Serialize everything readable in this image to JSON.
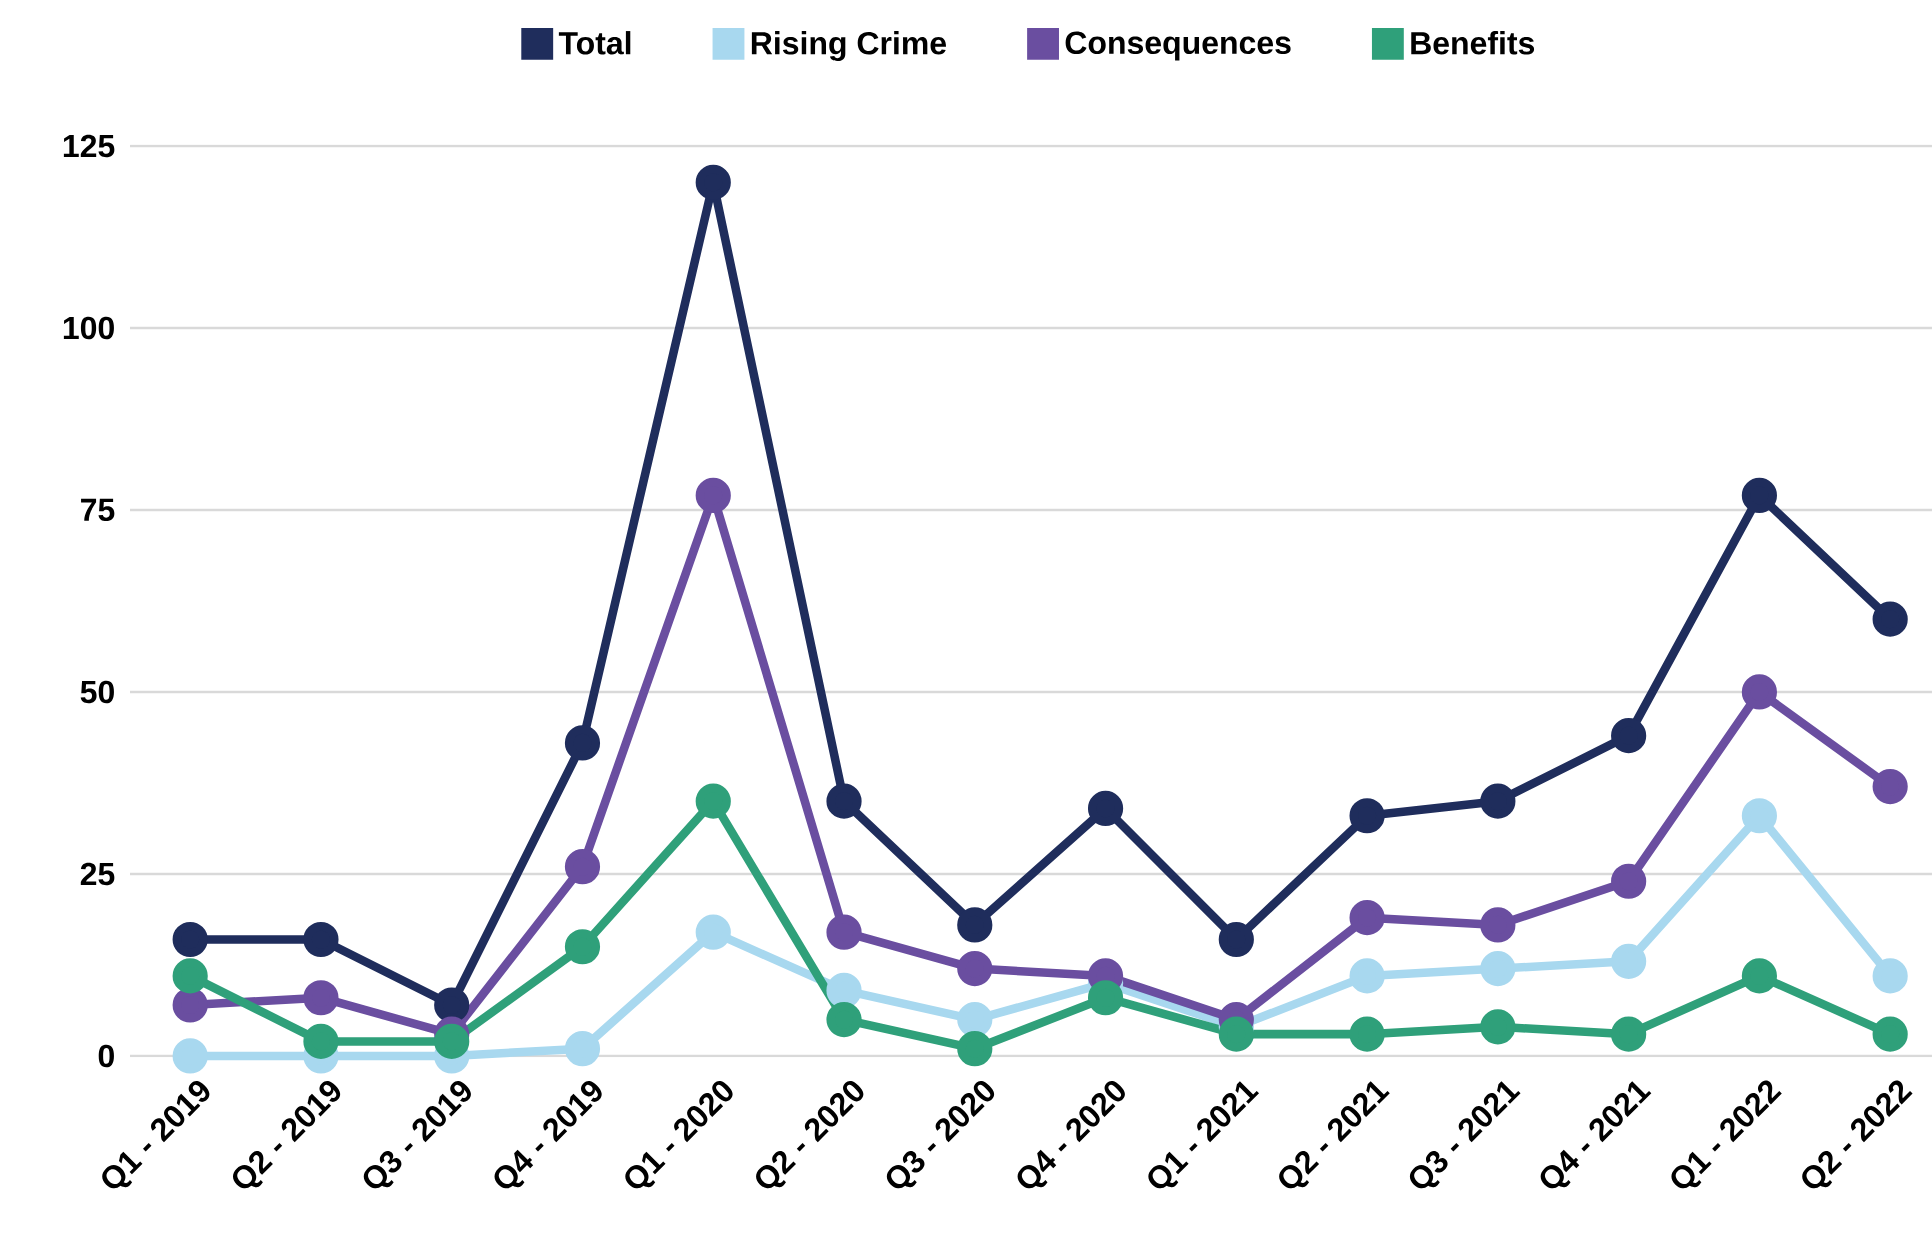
{
  "chart_data": {
    "type": "line",
    "categories": [
      "Q1 - 2019",
      "Q2 - 2019",
      "Q3 - 2019",
      "Q4 - 2019",
      "Q1 - 2020",
      "Q2 - 2020",
      "Q3 - 2020",
      "Q4 - 2020",
      "Q1 - 2021",
      "Q2 - 2021",
      "Q3 - 2021",
      "Q4 - 2021",
      "Q1 - 2022",
      "Q2 - 2022"
    ],
    "series": [
      {
        "name": "Total",
        "color": "#1f2d5c",
        "values": [
          16,
          16,
          7,
          43,
          120,
          35,
          18,
          34,
          16,
          33,
          35,
          44,
          77,
          60
        ]
      },
      {
        "name": "Rising Crime",
        "color": "#a8d8ef",
        "values": [
          0,
          0,
          0,
          1,
          17,
          9,
          5,
          10,
          4,
          11,
          12,
          13,
          33,
          11
        ]
      },
      {
        "name": "Consequences",
        "color": "#6a4ea0",
        "values": [
          7,
          8,
          3,
          26,
          77,
          17,
          12,
          11,
          5,
          19,
          18,
          24,
          50,
          37
        ]
      },
      {
        "name": "Benefits",
        "color": "#2fa07a",
        "values": [
          11,
          2,
          2,
          15,
          35,
          5,
          1,
          8,
          3,
          3,
          4,
          3,
          11,
          3
        ]
      }
    ],
    "ylim": [
      0,
      125
    ],
    "yticks": [
      0,
      25,
      50,
      75,
      100,
      125
    ],
    "grid": "y",
    "legend": "top",
    "marker": "circle",
    "line_style": "solid"
  }
}
